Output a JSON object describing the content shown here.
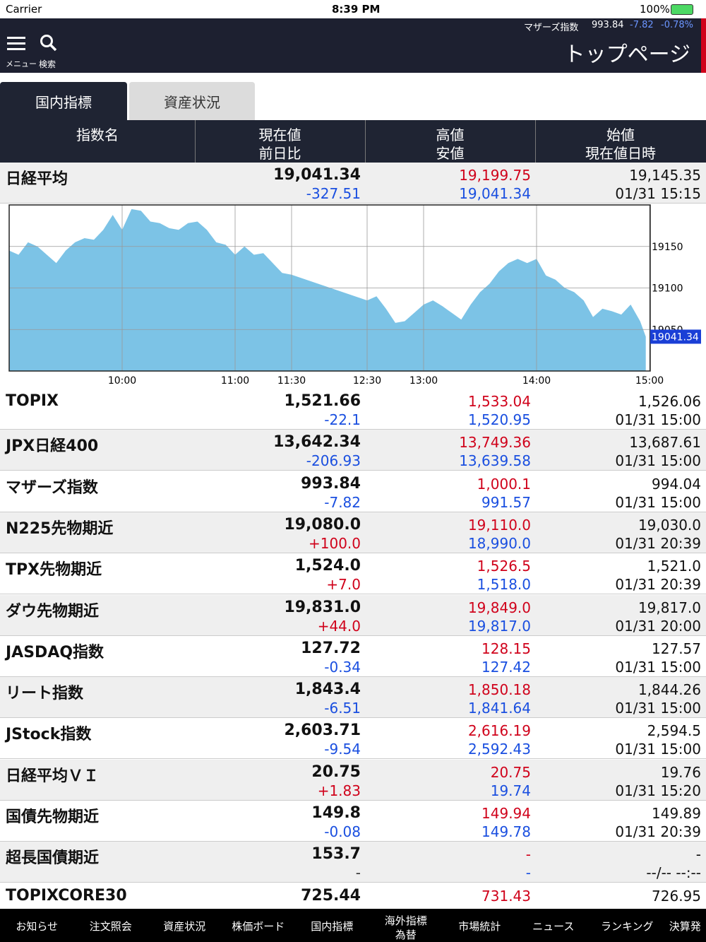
{
  "status": {
    "carrier": "Carrier",
    "time": "8:39 PM",
    "battery": "100%"
  },
  "header": {
    "ticker": {
      "name": "マザーズ指数",
      "price": "993.84",
      "change": "-7.82",
      "pct": "-0.78%"
    },
    "menu": "メニュー",
    "search": "検索",
    "title": "トップページ"
  },
  "tabs": [
    "国内指標",
    "資産状況"
  ],
  "columns": [
    [
      "指数名"
    ],
    [
      "現在値",
      "前日比"
    ],
    [
      "高値",
      "安値"
    ],
    [
      "始値",
      "現在値日時"
    ]
  ],
  "table": {
    "rows": [
      [
        "日経平均",
        "19,041.34",
        "-327.51",
        "19,199.75",
        "19,041.34",
        "19,145.35",
        "01/31 15:15"
      ],
      [
        "TOPIX",
        "1,521.66",
        "-22.1",
        "1,533.04",
        "1,520.95",
        "1,526.06",
        "01/31 15:00"
      ],
      [
        "JPX日経400",
        "13,642.34",
        "-206.93",
        "13,749.36",
        "13,639.58",
        "13,687.61",
        "01/31 15:00"
      ],
      [
        "マザーズ指数",
        "993.84",
        "-7.82",
        "1,000.1",
        "991.57",
        "994.04",
        "01/31 15:00"
      ],
      [
        "N225先物期近",
        "19,080.0",
        "+100.0",
        "19,110.0",
        "18,990.0",
        "19,030.0",
        "01/31 20:39"
      ],
      [
        "TPX先物期近",
        "1,524.0",
        "+7.0",
        "1,526.5",
        "1,518.0",
        "1,521.0",
        "01/31 20:39"
      ],
      [
        "ダウ先物期近",
        "19,831.0",
        "+44.0",
        "19,849.0",
        "19,817.0",
        "19,817.0",
        "01/31 20:00"
      ],
      [
        "JASDAQ指数",
        "127.72",
        "-0.34",
        "128.15",
        "127.42",
        "127.57",
        "01/31 15:00"
      ],
      [
        "リート指数",
        "1,843.4",
        "-6.51",
        "1,850.18",
        "1,841.64",
        "1,844.26",
        "01/31 15:00"
      ],
      [
        "JStock指数",
        "2,603.71",
        "-9.54",
        "2,616.19",
        "2,592.43",
        "2,594.5",
        "01/31 15:00"
      ],
      [
        "日経平均ＶＩ",
        "20.75",
        "+1.83",
        "20.75",
        "19.74",
        "19.76",
        "01/31 15:20"
      ],
      [
        "国債先物期近",
        "149.8",
        "-0.08",
        "149.94",
        "149.78",
        "149.89",
        "01/31 20:39"
      ],
      [
        "超長国債期近",
        "153.7",
        "-",
        "-",
        "-",
        "-",
        "--/-- --:--"
      ],
      [
        "TOPIXCORE30",
        "725.44",
        null,
        "731.43",
        null,
        "726.95",
        null
      ]
    ]
  },
  "chart_data": {
    "type": "area",
    "color": "#7cc3e6",
    "x": [
      0,
      5,
      10,
      15,
      20,
      25,
      30,
      35,
      40,
      45,
      50,
      55,
      60,
      65,
      70,
      75,
      80,
      85,
      90,
      95,
      100,
      105,
      110,
      115,
      120,
      125,
      130,
      135,
      140,
      145,
      150,
      210,
      215,
      220,
      225,
      230,
      235,
      240,
      245,
      250,
      255,
      260,
      265,
      270,
      275,
      280,
      285,
      290,
      295,
      300,
      305,
      310,
      315,
      320,
      325,
      330,
      335,
      340,
      345,
      350,
      355,
      358
    ],
    "values": [
      19145,
      19140,
      19155,
      19150,
      19140,
      19130,
      19145,
      19155,
      19160,
      19158,
      19170,
      19188,
      19170,
      19195,
      19193,
      19180,
      19178,
      19172,
      19170,
      19178,
      19180,
      19170,
      19155,
      19152,
      19140,
      19150,
      19140,
      19142,
      19130,
      19118,
      19116,
      19085,
      19090,
      19075,
      19058,
      19060,
      19070,
      19080,
      19085,
      19078,
      19070,
      19062,
      19080,
      19095,
      19105,
      19120,
      19130,
      19135,
      19130,
      19135,
      19115,
      19110,
      19100,
      19095,
      19085,
      19065,
      19075,
      19072,
      19068,
      19080,
      19060,
      19041.34
    ],
    "xlim": [
      0,
      360
    ],
    "xticks": [
      {
        "value": 60,
        "label": "10:00"
      },
      {
        "value": 120,
        "label": "11:00"
      },
      {
        "value": 150,
        "label": "11:30"
      },
      {
        "value": 210,
        "label": "12:30"
      },
      {
        "value": 240,
        "label": "13:00"
      },
      {
        "value": 300,
        "label": "14:00"
      },
      {
        "value": 360,
        "label": "15:00"
      }
    ],
    "ylim": [
      19000,
      19200
    ],
    "yticks": [
      19050,
      19100,
      19150
    ],
    "current": 19041.34,
    "grid": true
  },
  "nav": [
    [
      "お知らせ"
    ],
    [
      "注文照会"
    ],
    [
      "資産状況"
    ],
    [
      "株価ボード"
    ],
    [
      "国内指標"
    ],
    [
      "海外指標",
      "為替"
    ],
    [
      "市場統計"
    ],
    [
      "ニュース"
    ],
    [
      "ランキング"
    ],
    [
      "決算発"
    ]
  ]
}
